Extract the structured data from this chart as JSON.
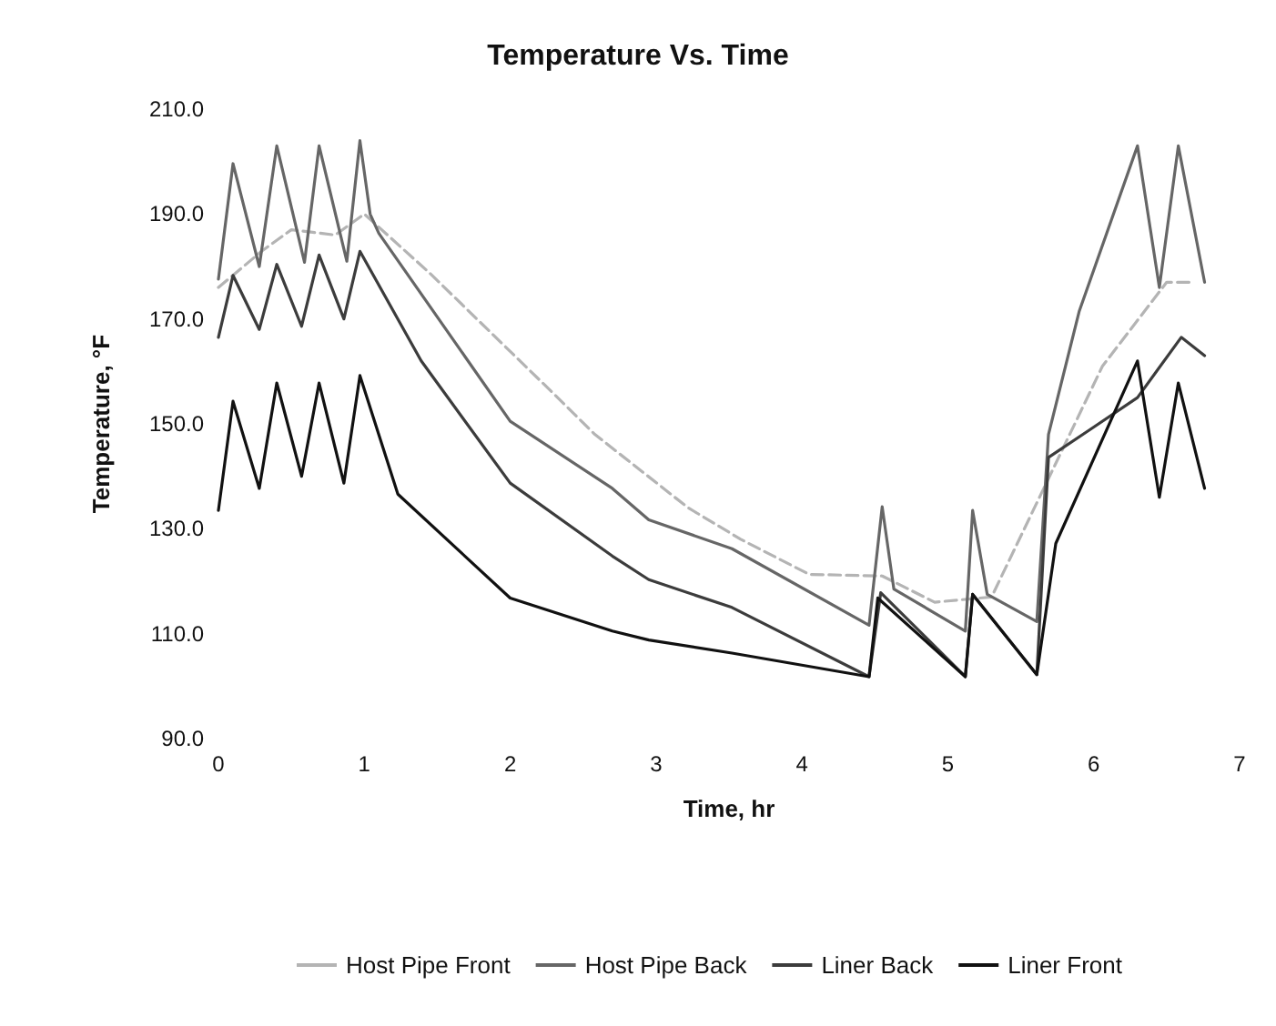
{
  "chart_data": {
    "type": "line",
    "title": "Temperature Vs. Time",
    "xlabel": "Time, hr",
    "ylabel": "Temperature, °F",
    "xlim": [
      0,
      7
    ],
    "xticks": [
      0,
      1,
      2,
      3,
      4,
      5,
      6,
      7
    ],
    "ylim": [
      90,
      210
    ],
    "yticks": [
      {
        "value": 90,
        "label": "90.0"
      },
      {
        "value": 110,
        "label": "110.0"
      },
      {
        "value": 130,
        "label": "130.0"
      },
      {
        "value": 150,
        "label": "150.0"
      },
      {
        "value": 170,
        "label": "170.0"
      },
      {
        "value": 190,
        "label": "190.0"
      },
      {
        "value": 210,
        "label": "210.0"
      }
    ],
    "grid": false,
    "legend": "bottom",
    "marker": "none",
    "series": [
      {
        "name": "Host Pipe Front",
        "color": "#b4b4b4",
        "line_style": "dashed",
        "x": [
          0,
          0.3,
          0.5,
          0.8,
          1.0,
          1.45,
          2.03,
          2.3,
          2.58,
          3.22,
          3.58,
          4.05,
          4.55,
          4.91,
          5.3,
          6.06,
          6.5,
          6.66
        ],
        "values": [
          176,
          183,
          187,
          186,
          190,
          178.7,
          163,
          155.7,
          148,
          134,
          128,
          121.3,
          121,
          116,
          117,
          161,
          177,
          177
        ]
      },
      {
        "name": "Host Pipe Back",
        "color": "#666666",
        "x": [
          0,
          0.1,
          0.28,
          0.4,
          0.59,
          0.69,
          0.88,
          0.97,
          1.04,
          1.1,
          2.0,
          2.7,
          2.95,
          3.52,
          4.46,
          4.55,
          4.63,
          5.12,
          5.17,
          5.27,
          5.61,
          5.69,
          5.9,
          6.3,
          6.45,
          6.58,
          6.76
        ],
        "values": [
          177.6,
          199.6,
          180,
          203,
          180.8,
          203,
          181,
          204,
          190,
          186.3,
          150.5,
          137.7,
          131.7,
          126.2,
          111.6,
          134.2,
          118.5,
          110.5,
          133.5,
          117.5,
          112.3,
          148,
          171.4,
          203,
          176,
          203,
          177
        ]
      },
      {
        "name": "Liner Back",
        "color": "#3c3c3c",
        "x": [
          0,
          0.1,
          0.28,
          0.4,
          0.57,
          0.69,
          0.86,
          0.97,
          1.39,
          2.0,
          2.7,
          2.95,
          3.52,
          4.46,
          4.54,
          5.12,
          5.17,
          5.61,
          5.69,
          5.98,
          6.3,
          6.6,
          6.76
        ],
        "values": [
          166.5,
          178.3,
          168,
          180.4,
          168.6,
          182.2,
          170,
          182.9,
          162,
          138.7,
          124.8,
          120.3,
          115,
          101.8,
          117.8,
          101.8,
          117.5,
          102.2,
          143.6,
          149,
          155,
          166.5,
          163
        ]
      },
      {
        "name": "Liner Front",
        "color": "#111111",
        "x": [
          0,
          0.1,
          0.28,
          0.4,
          0.57,
          0.69,
          0.86,
          0.97,
          1.23,
          2.0,
          2.7,
          2.95,
          3.52,
          4.46,
          4.52,
          5.12,
          5.17,
          5.61,
          5.74,
          6.3,
          6.45,
          6.58,
          6.76
        ],
        "values": [
          133.5,
          154.3,
          137.7,
          157.8,
          140,
          157.8,
          138.7,
          159.2,
          136.6,
          116.8,
          110.5,
          108.8,
          106.3,
          101.8,
          116.8,
          101.8,
          117.5,
          102.2,
          127.2,
          162,
          136,
          157.8,
          137.7
        ]
      }
    ]
  }
}
